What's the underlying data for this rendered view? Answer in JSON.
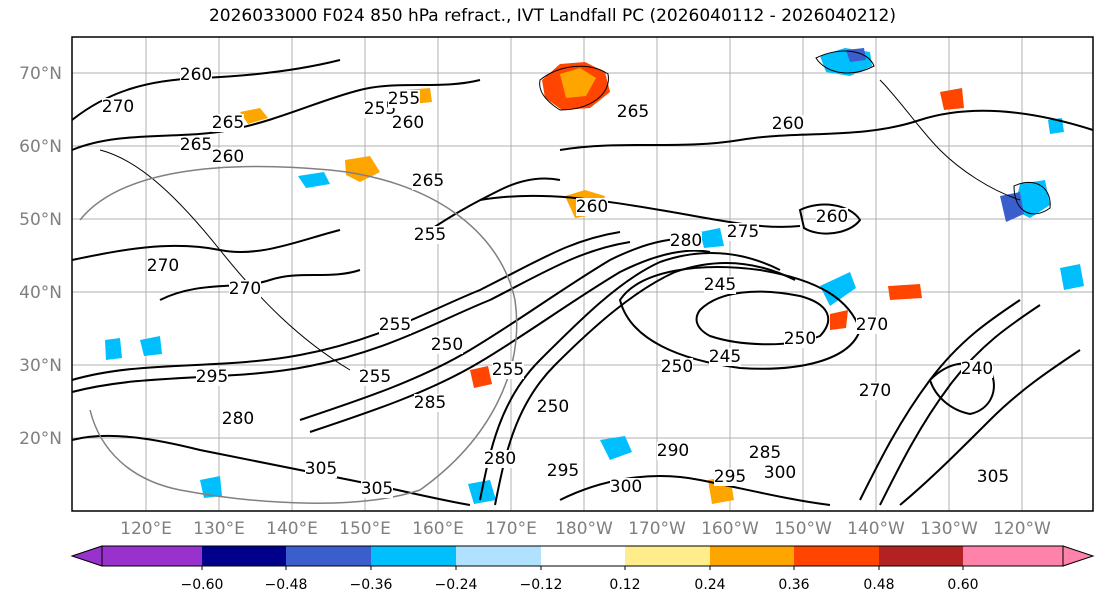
{
  "title": "2026033000 F024 850 hPa refract., IVT Landfall PC (2026040112 - 2026040212)",
  "map": {
    "lat_ticks": [
      "70°N",
      "60°N",
      "50°N",
      "40°N",
      "30°N",
      "20°N"
    ],
    "lon_ticks": [
      "120°E",
      "130°E",
      "140°E",
      "150°E",
      "160°E",
      "170°E",
      "180°W",
      "170°W",
      "160°W",
      "150°W",
      "140°W",
      "130°W",
      "120°W"
    ],
    "contour_labels": [
      "270",
      "260",
      "265",
      "265",
      "260",
      "255",
      "260",
      "265",
      "255",
      "255",
      "260",
      "265",
      "260",
      "275",
      "260",
      "270",
      "280",
      "245",
      "270",
      "255",
      "250",
      "255",
      "250",
      "245",
      "250",
      "255",
      "285",
      "270",
      "295",
      "280",
      "250",
      "290",
      "285",
      "305",
      "295",
      "300",
      "305",
      "280",
      "295",
      "300",
      "305",
      "240",
      "270"
    ]
  },
  "colorbar": {
    "tick_labels": [
      "−0.60",
      "−0.48",
      "−0.36",
      "−0.24",
      "−0.12",
      "0.12",
      "0.24",
      "0.36",
      "0.48",
      "0.60"
    ],
    "colors": [
      "#9932cc",
      "#00008b",
      "#3a5fcd",
      "#00bfff",
      "#b0e2ff",
      "#ffffff",
      "#ffec8b",
      "#ffa500",
      "#ff4500",
      "#b22222",
      "#ff82ab"
    ]
  }
}
